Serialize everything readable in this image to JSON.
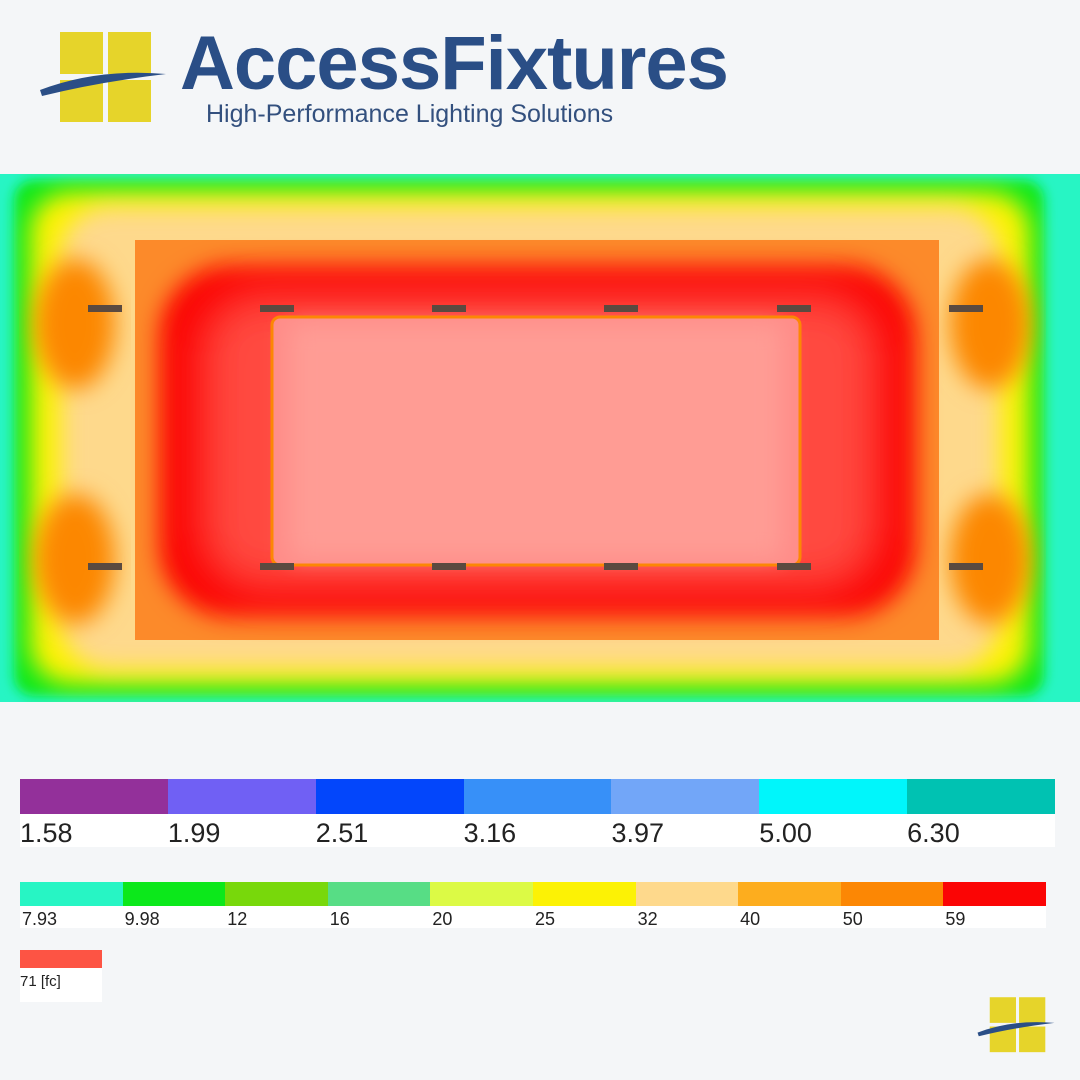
{
  "brand": {
    "name": "AccessFixtures",
    "tagline": "High-Performance Lighting Solutions",
    "logo_color": "#e6d42a",
    "text_color": "#2a4e86"
  },
  "legend": {
    "unit": "[fc]",
    "rows": [
      [
        {
          "label": "1.58",
          "color": "#93309a"
        },
        {
          "label": "1.99",
          "color": "#7060f4"
        },
        {
          "label": "2.51",
          "color": "#0346fb"
        },
        {
          "label": "3.16",
          "color": "#3790f8"
        },
        {
          "label": "3.97",
          "color": "#72a6f8"
        },
        {
          "label": "5.00",
          "color": "#00f6fb"
        },
        {
          "label": "6.30",
          "color": "#00c2b2"
        }
      ],
      [
        {
          "label": "7.93",
          "color": "#27f5c4"
        },
        {
          "label": "9.98",
          "color": "#0ce81b"
        },
        {
          "label": "12",
          "color": "#78d80b"
        },
        {
          "label": "16",
          "color": "#57dd85"
        },
        {
          "label": "20",
          "color": "#dcfa45"
        },
        {
          "label": "25",
          "color": "#fcf205"
        },
        {
          "label": "32",
          "color": "#fed98c"
        },
        {
          "label": "40",
          "color": "#fdad1e"
        },
        {
          "label": "50",
          "color": "#fc8704"
        },
        {
          "label": "59",
          "color": "#fb0505"
        }
      ],
      [
        {
          "label": "71 [fc]",
          "color": "#fd5444"
        }
      ]
    ]
  },
  "heatmap": {
    "fixture_color": "#5a4a40",
    "fixtures_top_row": 6,
    "fixtures_bottom_row": 6
  }
}
